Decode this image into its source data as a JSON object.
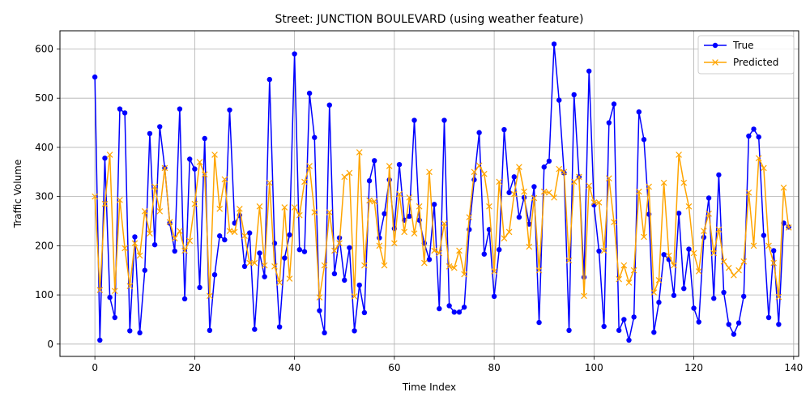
{
  "chart_data": {
    "type": "line",
    "title": "Street: JUNCTION BOULEVARD (using weather feature)",
    "xlabel": "Time Index",
    "ylabel": "Traffic Volume",
    "xlim": [
      -7,
      141
    ],
    "ylim": [
      -25,
      637
    ],
    "xticks": [
      0,
      20,
      40,
      60,
      80,
      100,
      120,
      140
    ],
    "yticks": [
      0,
      100,
      200,
      300,
      400,
      500,
      600
    ],
    "grid": true,
    "legend_position": "top-right",
    "series": [
      {
        "name": "True",
        "color": "#0000ff",
        "marker": "circle",
        "values": [
          543,
          8,
          378,
          95,
          54,
          478,
          470,
          27,
          218,
          23,
          150,
          428,
          202,
          442,
          358,
          246,
          189,
          478,
          92,
          376,
          356,
          115,
          418,
          28,
          141,
          220,
          212,
          476,
          246,
          262,
          158,
          226,
          30,
          185,
          137,
          538,
          205,
          35,
          175,
          222,
          590,
          192,
          188,
          510,
          420,
          68,
          23,
          486,
          143,
          216,
          130,
          196,
          27,
          120,
          64,
          332,
          373,
          216,
          265,
          334,
          235,
          365,
          252,
          260,
          455,
          252,
          205,
          172,
          284,
          72,
          455,
          78,
          65,
          65,
          75,
          233,
          334,
          430,
          183,
          233,
          97,
          192,
          436,
          308,
          340,
          258,
          298,
          244,
          320,
          44,
          360,
          372,
          610,
          496,
          348,
          28,
          507,
          340,
          136,
          555,
          283,
          189,
          36,
          450,
          488,
          28,
          50,
          8,
          55,
          472,
          416,
          264,
          24,
          85,
          182,
          172,
          99,
          266,
          113,
          193,
          73,
          45,
          217,
          297,
          93,
          344,
          105,
          40,
          20,
          43,
          97,
          423,
          437,
          421,
          221,
          54,
          190,
          40,
          246,
          238
        ]
      },
      {
        "name": "Predicted",
        "color": "#ffa500",
        "marker": "x",
        "values": [
          300,
          110,
          285,
          385,
          108,
          293,
          195,
          118,
          205,
          180,
          270,
          225,
          320,
          270,
          358,
          248,
          215,
          230,
          190,
          210,
          285,
          370,
          345,
          98,
          385,
          275,
          335,
          230,
          228,
          275,
          220,
          165,
          165,
          280,
          160,
          328,
          158,
          125,
          278,
          133,
          278,
          262,
          330,
          362,
          268,
          95,
          160,
          268,
          190,
          205,
          340,
          348,
          97,
          390,
          160,
          292,
          290,
          200,
          160,
          362,
          205,
          305,
          228,
          298,
          225,
          280,
          165,
          350,
          190,
          185,
          245,
          158,
          155,
          190,
          142,
          258,
          350,
          363,
          346,
          280,
          148,
          330,
          215,
          228,
          305,
          360,
          310,
          198,
          297,
          150,
          310,
          308,
          298,
          356,
          350,
          170,
          330,
          340,
          98,
          322,
          288,
          288,
          190,
          337,
          248,
          132,
          160,
          125,
          150,
          310,
          218,
          320,
          105,
          130,
          328,
          180,
          160,
          385,
          328,
          280,
          185,
          148,
          230,
          265,
          185,
          233,
          168,
          155,
          140,
          150,
          168,
          308,
          200,
          378,
          358,
          200,
          165,
          96,
          318,
          237
        ]
      }
    ]
  }
}
